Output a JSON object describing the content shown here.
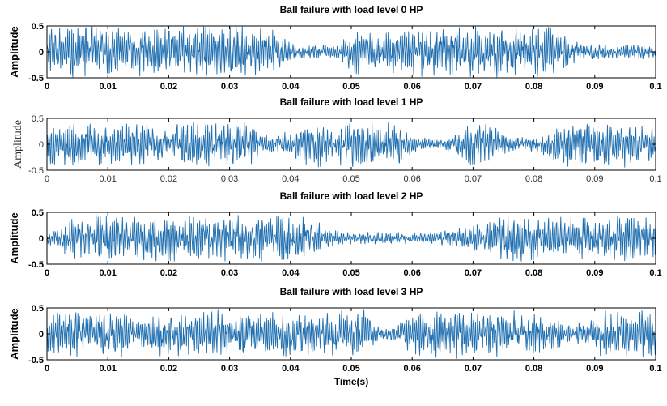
{
  "chart_data": [
    {
      "type": "line",
      "title": "Ball failure with load level 0 HP",
      "ylabel": "Amplitude",
      "xlabel": "",
      "xlim": [
        0,
        0.1
      ],
      "ylim": [
        -0.5,
        0.5
      ],
      "xticks": [
        "0",
        "0.01",
        "0.02",
        "0.03",
        "0.04",
        "0.05",
        "0.06",
        "0.07",
        "0.08",
        "0.09",
        "0.1"
      ],
      "yticks": [
        "0.5",
        "0",
        "-0.5"
      ],
      "color": "#1f6fb0",
      "label_style": "bold",
      "peak_amplitude": 0.45,
      "seed": 11
    },
    {
      "type": "line",
      "title": "Ball failure with load level 1 HP",
      "ylabel": "Amplitude",
      "xlabel": "",
      "xlim": [
        0,
        0.1
      ],
      "ylim": [
        -0.5,
        0.5
      ],
      "xticks": [
        "0",
        "0.01",
        "0.02",
        "0.03",
        "0.04",
        "0.05",
        "0.06",
        "0.07",
        "0.08",
        "0.09",
        "0.1"
      ],
      "yticks": [
        "0.5",
        "0",
        "-0.5"
      ],
      "color": "#1f6fb0",
      "label_style": "plain",
      "peak_amplitude": 0.4,
      "seed": 23
    },
    {
      "type": "line",
      "title": "Ball failure with load level 2 HP",
      "ylabel": "Amplitude",
      "xlabel": "",
      "xlim": [
        0,
        0.1
      ],
      "ylim": [
        -0.5,
        0.5
      ],
      "xticks": [
        "0",
        "0.01",
        "0.02",
        "0.03",
        "0.04",
        "0.05",
        "0.06",
        "0.07",
        "0.08",
        "0.09",
        "0.1"
      ],
      "yticks": [
        "0.5",
        "0",
        "-0.5"
      ],
      "color": "#1f6fb0",
      "label_style": "bold",
      "peak_amplitude": 0.4,
      "seed": 37
    },
    {
      "type": "line",
      "title": "Ball failure with load level 3 HP",
      "ylabel": "Amplitude",
      "xlabel": "Time(s)",
      "xlim": [
        0,
        0.1
      ],
      "ylim": [
        -0.5,
        0.5
      ],
      "xticks": [
        "0",
        "0.01",
        "0.02",
        "0.03",
        "0.04",
        "0.05",
        "0.06",
        "0.07",
        "0.08",
        "0.09",
        "0.1"
      ],
      "yticks": [
        "0.5",
        "0",
        "-0.5"
      ],
      "color": "#1f6fb0",
      "label_style": "bold",
      "peak_amplitude": 0.42,
      "seed": 53
    }
  ]
}
